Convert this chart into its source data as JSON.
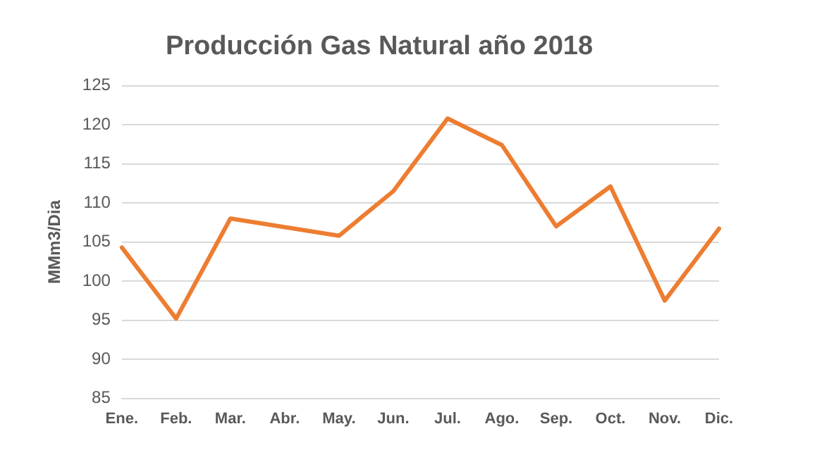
{
  "chart_data": {
    "type": "line",
    "title": "Producción Gas Natural año 2018",
    "ylabel": "MMm3/Dia",
    "categories": [
      "Ene.",
      "Feb.",
      "Mar.",
      "Abr.",
      "May.",
      "Jun.",
      "Jul.",
      "Ago.",
      "Sep.",
      "Oct.",
      "Nov.",
      "Dic."
    ],
    "series": [
      {
        "color": "#ed7d31",
        "values": [
          104.3,
          95.2,
          108,
          106.9,
          105.8,
          111.5,
          120.8,
          117.4,
          107,
          112.1,
          97.5,
          106.7
        ]
      }
    ],
    "ylim": [
      85,
      125
    ],
    "yticks": [
      85,
      90,
      95,
      100,
      105,
      110,
      115,
      120,
      125
    ],
    "grid": "y",
    "legend": false,
    "marker": "none",
    "line_style": "solid"
  }
}
